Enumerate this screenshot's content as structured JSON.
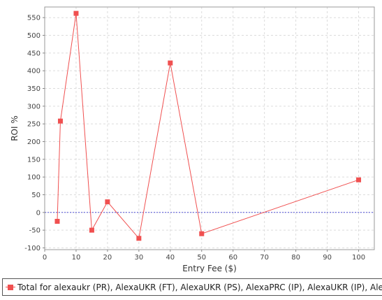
{
  "chart_data": {
    "type": "line",
    "xlabel": "Entry Fee ($)",
    "ylabel": "ROI %",
    "xlim": [
      0,
      105
    ],
    "ylim": [
      -105,
      580
    ],
    "xticks": [
      0,
      10,
      20,
      30,
      40,
      50,
      60,
      70,
      80,
      90,
      100
    ],
    "yticks": [
      -100,
      -50,
      0,
      50,
      100,
      150,
      200,
      250,
      300,
      350,
      400,
      450,
      500,
      550
    ],
    "grid": true,
    "baseline": 0,
    "legend_position": "bottom",
    "series": [
      {
        "name": "Total for alexaukr (PR), AlexaUKR (FT), AlexaUKR (PS), AlexaPRC (IP), AlexaUKR (IP), Alexa",
        "color": "#f05050",
        "x": [
          4,
          5,
          10,
          15,
          20,
          30,
          40,
          50,
          100
        ],
        "values": [
          -25,
          258,
          562,
          -50,
          30,
          -73,
          422,
          -60,
          92
        ]
      }
    ]
  },
  "colors": {
    "series": "#f05050",
    "baseline": "#5050d8",
    "grid": "#dcdcdc"
  }
}
